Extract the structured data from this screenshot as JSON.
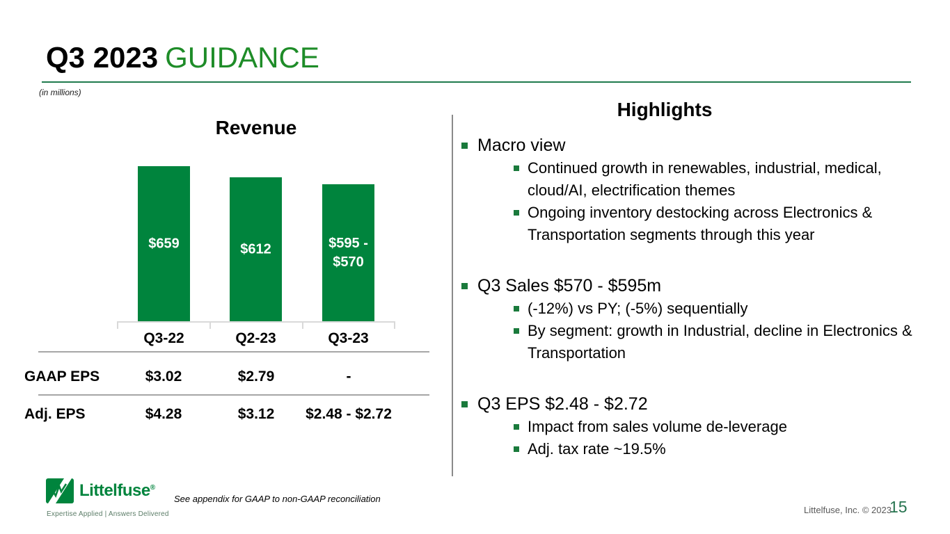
{
  "slide": {
    "title": {
      "prefix": "Q3 2023",
      "suffix": "GUIDANCE"
    },
    "units_note": "(in millions)",
    "footnote": "See appendix for GAAP to non-GAAP reconciliation",
    "copyright": "Littelfuse, Inc. © 2023",
    "page_number": "15",
    "logo": {
      "name": "Littelfuse",
      "registered": "®",
      "tagline": "Expertise Applied | Answers Delivered"
    }
  },
  "chart_data": {
    "type": "bar",
    "title": "Revenue",
    "units": "(in millions)",
    "categories": [
      "Q3-22",
      "Q2-23",
      "Q3-23"
    ],
    "values": [
      659,
      612,
      582.5
    ],
    "value_labels": [
      [
        "$659"
      ],
      [
        "$612"
      ],
      [
        "$595 -",
        "$570"
      ]
    ],
    "q3_23_guidance_range": [
      570,
      595
    ],
    "bar_color": "#00843D",
    "label_color": "#ffffff",
    "ylim": [
      0,
      680
    ],
    "gridlines": false,
    "legend": false
  },
  "eps_table": {
    "columns": [
      "Q3-22",
      "Q2-23",
      "Q3-23"
    ],
    "rows": [
      {
        "label": "GAAP EPS",
        "values": [
          "$3.02",
          "$2.79",
          "-"
        ]
      },
      {
        "label": "Adj. EPS",
        "values": [
          "$4.28",
          "$3.12",
          "$2.48 - $2.72"
        ]
      }
    ]
  },
  "highlights": {
    "title": "Highlights",
    "items": [
      {
        "label": "Macro view",
        "subitems": [
          "Continued growth in renewables, industrial, medical, cloud/AI, electrification themes",
          "Ongoing inventory destocking across Electronics & Transportation segments through this year"
        ]
      },
      {
        "label": "Q3 Sales $570 - $595m",
        "subitems": [
          "(-12%) vs PY; (-5%) sequentially",
          "By segment: growth in Industrial, decline in Electronics & Transportation"
        ]
      },
      {
        "label": "Q3 EPS $2.48 - $2.72",
        "subitems": [
          "Impact from sales volume de-leverage",
          "Adj. tax rate ~19.5%"
        ]
      }
    ]
  },
  "colors": {
    "brand_green": "#00843D",
    "title_green": "#1e8c28",
    "bullet_green": "#1a7a3c",
    "rule_green": "#1f7a4d",
    "page_number_green": "#26734f",
    "table_line_gray": "#a6a6a6",
    "axis_gray": "#d9d9d9",
    "copyright_gray": "#595959"
  }
}
